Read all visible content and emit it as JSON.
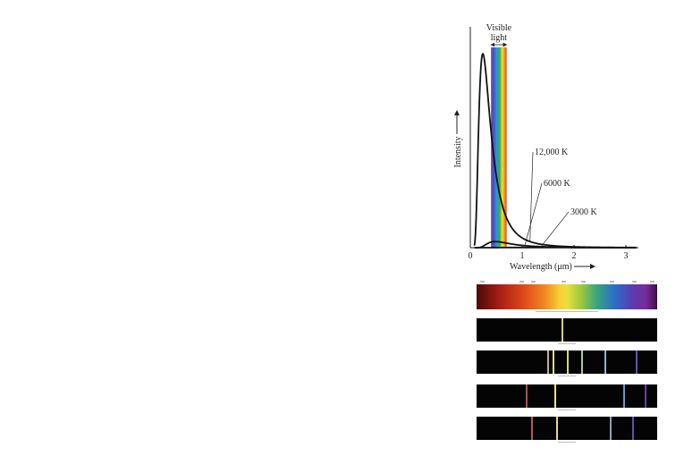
{
  "chart_data": {
    "type": "line",
    "title": "",
    "xlabel": "Wavelength (μm)",
    "ylabel": "Intensity",
    "xlim": [
      0,
      3.2
    ],
    "ylim": [
      0,
      1
    ],
    "x_ticks": [
      "0",
      "1",
      "2",
      "3"
    ],
    "visible_band": {
      "label_line1": "Visible",
      "label_line2": "light",
      "x_range": [
        0.4,
        0.7
      ]
    },
    "series": [
      {
        "name": "12,000 K",
        "temperature_K": 12000
      },
      {
        "name": "6000 K",
        "temperature_K": 6000
      },
      {
        "name": "3000 K",
        "temperature_K": 3000
      }
    ]
  },
  "spectra": [
    {
      "kind": "continuous",
      "lines": []
    },
    {
      "kind": "emission",
      "lines": [
        {
          "pos": 0.47,
          "color": "#d8d070"
        }
      ]
    },
    {
      "kind": "emission",
      "lines": [
        {
          "pos": 0.39,
          "color": "#c8b070"
        },
        {
          "pos": 0.42,
          "color": "#e0d890"
        },
        {
          "pos": 0.5,
          "color": "#d0d880"
        },
        {
          "pos": 0.58,
          "color": "#b0c890"
        },
        {
          "pos": 0.71,
          "color": "#90b0d0"
        },
        {
          "pos": 0.88,
          "color": "#6050b0"
        }
      ]
    },
    {
      "kind": "emission",
      "lines": [
        {
          "pos": 0.27,
          "color": "#b05040"
        },
        {
          "pos": 0.43,
          "color": "#e8e090"
        },
        {
          "pos": 0.81,
          "color": "#7090d0"
        },
        {
          "pos": 0.93,
          "color": "#6040a0"
        }
      ]
    },
    {
      "kind": "emission",
      "lines": [
        {
          "pos": 0.3,
          "color": "#b06040"
        },
        {
          "pos": 0.44,
          "color": "#e0d890"
        },
        {
          "pos": 0.74,
          "color": "#90a0c0"
        },
        {
          "pos": 0.86,
          "color": "#6050b0"
        }
      ]
    }
  ]
}
